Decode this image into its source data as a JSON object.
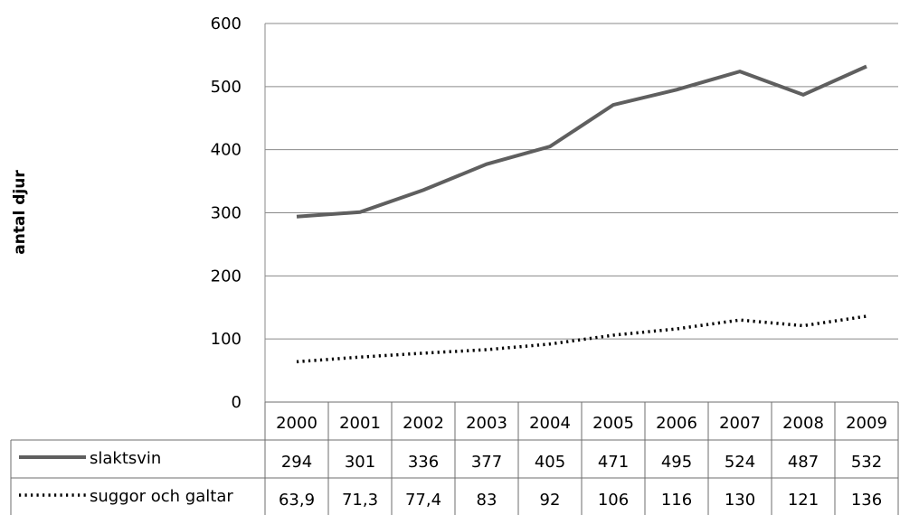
{
  "chart_data": {
    "type": "line",
    "title": "",
    "xlabel": "",
    "ylabel": "antal djur",
    "ylim": [
      0,
      600
    ],
    "yticks": [
      "0",
      "100",
      "200",
      "300",
      "400",
      "500",
      "600"
    ],
    "grid": true,
    "legend_placement": "data-table",
    "categories": [
      "2000",
      "2001",
      "2002",
      "2003",
      "2004",
      "2005",
      "2006",
      "2007",
      "2008",
      "2009"
    ],
    "series": [
      {
        "name": "slaktsvin",
        "values": [
          294,
          301,
          336,
          377,
          405,
          471,
          495,
          524,
          487,
          532
        ],
        "labels": [
          "294",
          "301",
          "336",
          "377",
          "405",
          "471",
          "495",
          "524",
          "487",
          "532"
        ],
        "color": "#5f5f5f",
        "style": "solid"
      },
      {
        "name": "suggor och galtar",
        "values": [
          63.9,
          71.3,
          77.4,
          83,
          92,
          106,
          116,
          130,
          121,
          136
        ],
        "labels": [
          "63,9",
          "71,3",
          "77,4",
          "83",
          "92",
          "106",
          "116",
          "130",
          "121",
          "136"
        ],
        "color": "#000000",
        "style": "dotted"
      }
    ]
  }
}
